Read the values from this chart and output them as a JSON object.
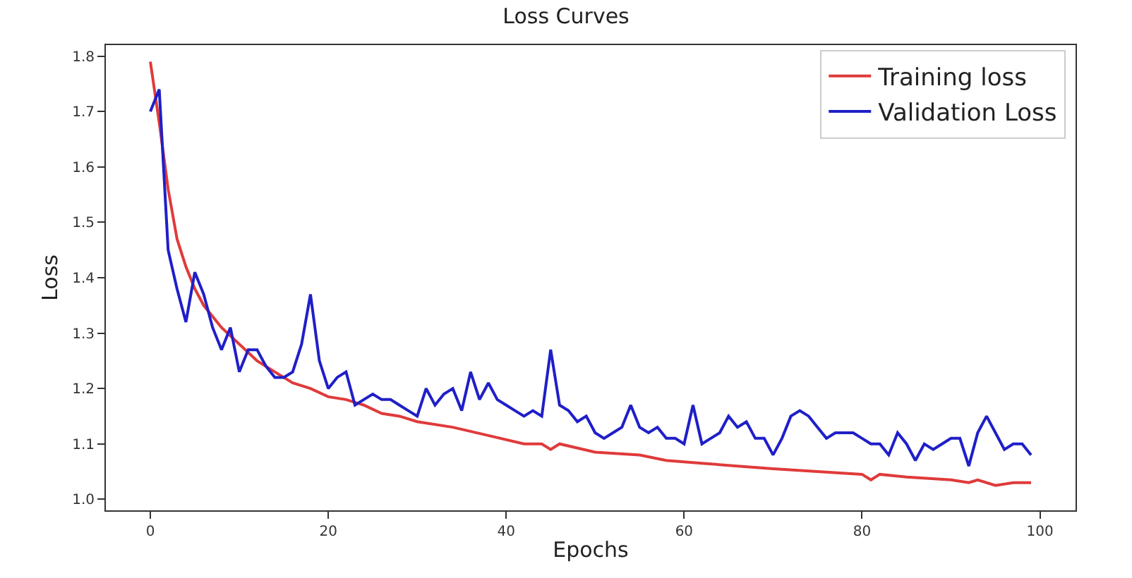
{
  "chart_data": {
    "type": "line",
    "title": "Loss Curves",
    "xlabel": "Epochs",
    "ylabel": "Loss",
    "xlim": [
      -5,
      104
    ],
    "ylim": [
      0.98,
      1.82
    ],
    "xticks": [
      0,
      20,
      40,
      60,
      80,
      100
    ],
    "yticks": [
      {
        "value": 1.0,
        "label": "1.0"
      },
      1.1,
      1.2,
      1.3,
      1.4,
      1.5,
      1.6,
      1.7,
      1.8
    ],
    "legend": "top right",
    "marker": "none",
    "line_style": "solid",
    "series": [
      {
        "name": "Training loss",
        "color": "#e03a3a",
        "x": [
          0,
          1,
          2,
          3,
          4,
          5,
          6,
          8,
          10,
          12,
          14,
          16,
          18,
          20,
          22,
          24,
          26,
          28,
          30,
          34,
          38,
          42,
          44,
          45,
          46,
          50,
          55,
          58,
          62,
          66,
          70,
          75,
          80,
          81,
          82,
          85,
          90,
          92,
          93,
          95,
          97,
          99
        ],
        "values": [
          1.79,
          1.68,
          1.56,
          1.47,
          1.42,
          1.38,
          1.35,
          1.31,
          1.28,
          1.25,
          1.23,
          1.21,
          1.2,
          1.185,
          1.18,
          1.17,
          1.155,
          1.15,
          1.14,
          1.13,
          1.115,
          1.1,
          1.1,
          1.09,
          1.1,
          1.085,
          1.08,
          1.07,
          1.065,
          1.06,
          1.055,
          1.05,
          1.045,
          1.035,
          1.045,
          1.04,
          1.035,
          1.03,
          1.035,
          1.025,
          1.03,
          1.03
        ]
      },
      {
        "name": "Validation Loss",
        "color": "#1f1fc8",
        "x": [
          0,
          1,
          2,
          3,
          4,
          5,
          6,
          7,
          8,
          9,
          10,
          11,
          12,
          13,
          14,
          15,
          16,
          17,
          18,
          19,
          20,
          21,
          22,
          23,
          24,
          25,
          26,
          27,
          28,
          29,
          30,
          31,
          32,
          33,
          34,
          35,
          36,
          37,
          38,
          39,
          40,
          41,
          42,
          43,
          44,
          45,
          46,
          47,
          48,
          49,
          50,
          51,
          52,
          53,
          54,
          55,
          56,
          57,
          58,
          59,
          60,
          61,
          62,
          63,
          64,
          65,
          66,
          67,
          68,
          69,
          70,
          71,
          72,
          73,
          74,
          75,
          76,
          77,
          78,
          79,
          80,
          81,
          82,
          83,
          84,
          85,
          86,
          87,
          88,
          89,
          90,
          91,
          92,
          93,
          94,
          95,
          96,
          97,
          98,
          99
        ],
        "values": [
          1.7,
          1.74,
          1.45,
          1.38,
          1.32,
          1.41,
          1.37,
          1.31,
          1.27,
          1.31,
          1.23,
          1.27,
          1.27,
          1.24,
          1.22,
          1.22,
          1.23,
          1.28,
          1.37,
          1.25,
          1.2,
          1.22,
          1.23,
          1.17,
          1.18,
          1.19,
          1.18,
          1.18,
          1.17,
          1.16,
          1.15,
          1.2,
          1.17,
          1.19,
          1.2,
          1.16,
          1.23,
          1.18,
          1.21,
          1.18,
          1.17,
          1.16,
          1.15,
          1.16,
          1.15,
          1.27,
          1.17,
          1.16,
          1.14,
          1.15,
          1.12,
          1.11,
          1.12,
          1.13,
          1.17,
          1.13,
          1.12,
          1.13,
          1.11,
          1.11,
          1.1,
          1.17,
          1.1,
          1.11,
          1.12,
          1.15,
          1.13,
          1.14,
          1.11,
          1.11,
          1.08,
          1.11,
          1.15,
          1.16,
          1.15,
          1.13,
          1.11,
          1.12,
          1.12,
          1.12,
          1.11,
          1.1,
          1.1,
          1.08,
          1.12,
          1.1,
          1.07,
          1.1,
          1.09,
          1.1,
          1.11,
          1.11,
          1.06,
          1.12,
          1.15,
          1.12,
          1.09,
          1.1,
          1.1,
          1.08
        ]
      }
    ]
  }
}
